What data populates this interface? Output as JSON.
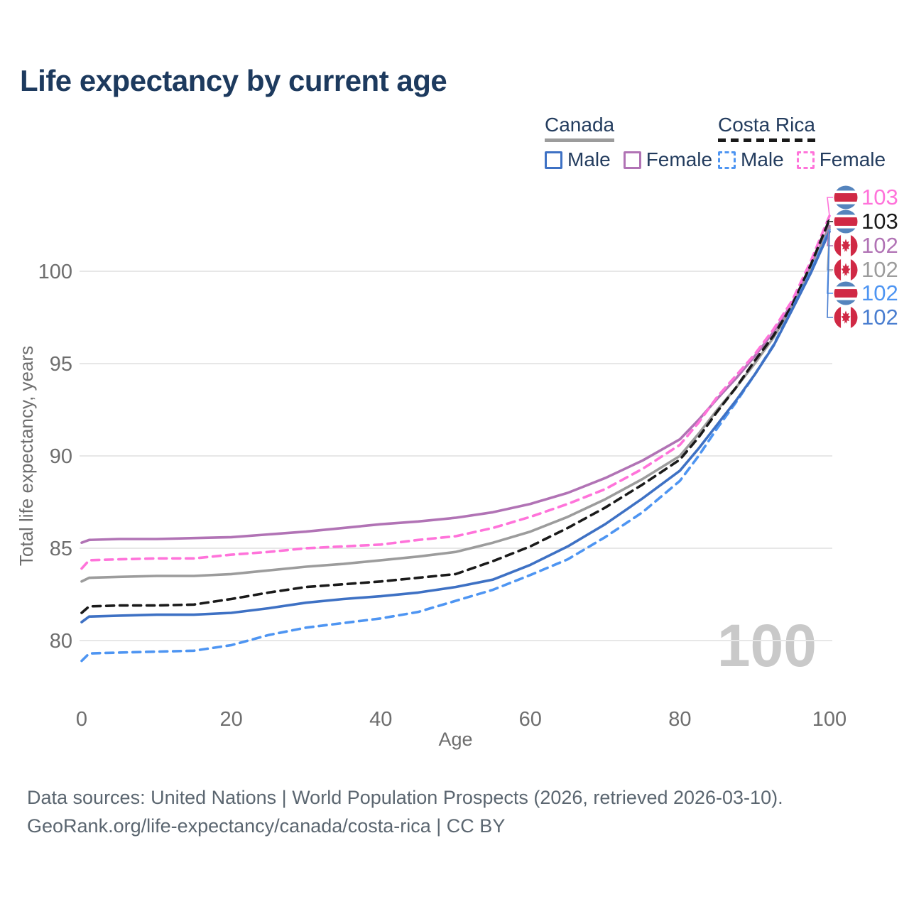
{
  "title": "Life expectancy by current age",
  "watermark": "100",
  "legend": {
    "canada": {
      "label": "Canada",
      "male": "Male",
      "female": "Female"
    },
    "costa_rica": {
      "label": "Costa Rica",
      "male": "Male",
      "female": "Female"
    }
  },
  "colors": {
    "canada_male": "#3e71c4",
    "canada_female": "#b173b5",
    "canada_all": "#9c9c9c",
    "costa_rica_male": "#4e95f2",
    "costa_rica_female": "#ff73da",
    "costa_rica_all": "#1a1a1a",
    "canada_male_label": "#4a7ed0",
    "title_text": "#1d3a5e",
    "legend_text": "#233c5e",
    "axis_text": "#6e6e6e",
    "grid": "#e7e7e7",
    "watermark": "#c9c9c9",
    "flag_cr_blue": "#5584bd",
    "flag_cr_red": "#d02945",
    "flag_ca_red": "#d02945"
  },
  "chart_data": {
    "type": "line",
    "title": "Life expectancy by current age",
    "xlabel": "Age",
    "ylabel": "Total life expectancy, years",
    "xlim": [
      0,
      100
    ],
    "ylim": [
      78,
      103.5
    ],
    "x_ticks": [
      0,
      20,
      40,
      60,
      80,
      100
    ],
    "y_ticks": [
      80,
      85,
      90,
      95,
      100
    ],
    "grid": true,
    "legend_position": "top-right",
    "x": [
      0,
      1,
      5,
      10,
      15,
      20,
      25,
      30,
      35,
      40,
      45,
      50,
      55,
      60,
      65,
      70,
      75,
      80,
      82.5,
      85,
      87.5,
      90,
      92.5,
      95,
      97.5,
      100
    ],
    "series": [
      {
        "id": "canada_female",
        "name": "Canada Female",
        "country": "Canada",
        "sex": "Female",
        "style": "solid",
        "color_key": "canada_female",
        "flag": "canada",
        "end_label": "102",
        "label_row": 2,
        "values": [
          85.3,
          85.45,
          85.5,
          85.5,
          85.55,
          85.6,
          85.75,
          85.9,
          86.1,
          86.3,
          86.45,
          86.65,
          86.95,
          87.4,
          88.0,
          88.8,
          89.75,
          90.9,
          91.95,
          93.1,
          94.2,
          95.4,
          96.7,
          98.25,
          100.25,
          102.45
        ]
      },
      {
        "id": "costa_rica_female",
        "name": "Costa Rica Female",
        "country": "Costa Rica",
        "sex": "Female",
        "style": "dashed",
        "color_key": "costa_rica_female",
        "flag": "costa_rica",
        "end_label": "103",
        "label_row": 0,
        "values": [
          83.9,
          84.35,
          84.4,
          84.45,
          84.45,
          84.65,
          84.8,
          85.0,
          85.1,
          85.2,
          85.45,
          85.65,
          86.1,
          86.7,
          87.4,
          88.2,
          89.3,
          90.6,
          91.8,
          93.2,
          94.35,
          95.5,
          96.85,
          98.4,
          100.55,
          103.0
        ]
      },
      {
        "id": "canada_all",
        "name": "Canada (both sexes)",
        "country": "Canada",
        "sex": "All",
        "style": "solid",
        "color_key": "canada_all",
        "flag": "canada",
        "end_label": "102",
        "label_row": 3,
        "values": [
          83.2,
          83.4,
          83.45,
          83.5,
          83.5,
          83.6,
          83.8,
          84.0,
          84.15,
          84.35,
          84.55,
          84.8,
          85.3,
          85.9,
          86.7,
          87.65,
          88.75,
          90.0,
          91.2,
          92.5,
          93.7,
          95.0,
          96.4,
          98.05,
          100.1,
          102.35
        ]
      },
      {
        "id": "costa_rica_all",
        "name": "Costa Rica (both sexes)",
        "country": "Costa Rica",
        "sex": "All",
        "style": "dashed",
        "color_key": "costa_rica_all",
        "flag": "costa_rica",
        "end_label": "103",
        "label_row": 1,
        "values": [
          81.5,
          81.85,
          81.9,
          81.9,
          81.95,
          82.25,
          82.6,
          82.9,
          83.05,
          83.2,
          83.4,
          83.6,
          84.3,
          85.1,
          86.1,
          87.2,
          88.45,
          89.8,
          91.0,
          92.4,
          93.7,
          95.15,
          96.5,
          98.15,
          100.35,
          102.8
        ]
      },
      {
        "id": "costa_rica_male",
        "name": "Costa Rica Male",
        "country": "Costa Rica",
        "sex": "Male",
        "style": "dashed",
        "color_key": "costa_rica_male",
        "flag": "costa_rica",
        "end_label": "102",
        "label_row": 4,
        "values": [
          78.9,
          79.3,
          79.35,
          79.4,
          79.45,
          79.75,
          80.3,
          80.7,
          80.95,
          81.2,
          81.55,
          82.15,
          82.75,
          83.55,
          84.4,
          85.6,
          86.95,
          88.65,
          90.0,
          91.5,
          92.9,
          94.4,
          96.0,
          97.95,
          100.0,
          102.25
        ]
      },
      {
        "id": "canada_male",
        "name": "Canada Male",
        "country": "Canada",
        "sex": "Male",
        "style": "solid",
        "color_key": "canada_male",
        "flag": "canada",
        "end_label": "102",
        "label_row": 5,
        "label_color_key": "canada_male_label",
        "values": [
          81.0,
          81.3,
          81.35,
          81.4,
          81.4,
          81.5,
          81.75,
          82.05,
          82.25,
          82.4,
          82.6,
          82.9,
          83.3,
          84.1,
          85.1,
          86.3,
          87.7,
          89.2,
          90.4,
          91.7,
          93.0,
          94.4,
          95.95,
          97.9,
          99.9,
          102.15
        ]
      }
    ]
  },
  "footer": {
    "line1": "Data sources: United Nations | World Population Prospects (2026, retrieved 2026-03-10).",
    "line2": "GeoRank.org/life-expectancy/canada/costa-rica | CC BY"
  }
}
